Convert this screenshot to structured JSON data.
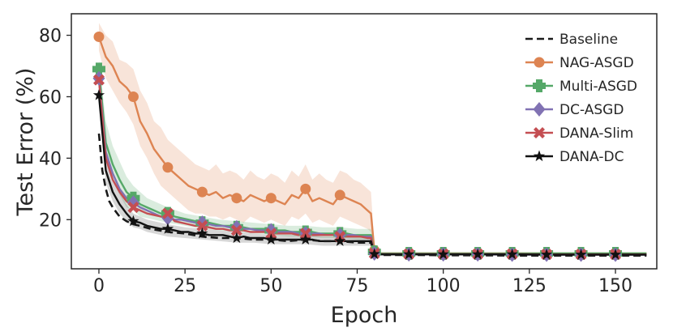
{
  "chart_data": {
    "type": "line",
    "title": "",
    "xlabel": "Epoch",
    "ylabel": "Test Error (%)",
    "xlim": [
      -8,
      162
    ],
    "ylim": [
      4,
      87
    ],
    "x_ticks": [
      0,
      25,
      50,
      75,
      100,
      125,
      150
    ],
    "y_ticks": [
      20,
      40,
      60,
      80
    ],
    "grid": false,
    "legend_position": "top-right",
    "series": [
      {
        "name": "Baseline",
        "color": "#1a1a1a",
        "dash": "dashed",
        "marker": "none",
        "x": [
          0,
          1,
          2,
          3,
          4,
          5,
          6,
          8,
          10,
          12,
          15,
          20,
          25,
          30,
          35,
          40,
          45,
          50,
          55,
          60,
          65,
          70,
          75,
          79,
          80,
          81,
          90,
          100,
          110,
          120,
          130,
          140,
          150,
          159
        ],
        "y": [
          48,
          36,
          30,
          26,
          24,
          22.5,
          21,
          19.5,
          18.5,
          18,
          17,
          16,
          15.5,
          14.5,
          14,
          14,
          13.5,
          13.5,
          13,
          13.5,
          13,
          13,
          12.5,
          12.5,
          9,
          8.5,
          8.5,
          8.4,
          8.4,
          8.3,
          8.3,
          8.3,
          8.3,
          8.3
        ]
      },
      {
        "name": "NAG-ASGD",
        "color": "#dd8452",
        "dash": "solid",
        "marker": "circle",
        "x": [
          0,
          2,
          4,
          6,
          8,
          10,
          12,
          14,
          16,
          18,
          20,
          22,
          24,
          26,
          28,
          30,
          32,
          34,
          36,
          38,
          40,
          42,
          44,
          46,
          48,
          50,
          52,
          54,
          56,
          58,
          60,
          62,
          64,
          66,
          68,
          70,
          72,
          74,
          76,
          78,
          79,
          80,
          81,
          90,
          100,
          110,
          120,
          130,
          140,
          150,
          159
        ],
        "y": [
          79.5,
          73,
          70,
          65,
          63,
          60,
          52,
          48,
          43,
          40,
          37,
          35,
          33,
          31,
          30,
          29,
          28,
          29,
          27,
          28,
          27,
          26,
          28,
          27,
          26,
          27,
          26,
          25,
          28,
          27,
          30,
          26,
          27,
          26,
          25,
          28,
          27,
          26,
          25,
          23,
          22,
          10,
          9,
          9,
          9,
          9,
          9,
          9,
          9,
          9,
          9
        ],
        "marker_x": [
          0,
          10,
          20,
          30,
          40,
          50,
          60,
          70,
          80,
          90,
          100,
          110,
          120,
          130,
          140,
          150
        ]
      },
      {
        "name": "Multi-ASGD",
        "color": "#55a868",
        "dash": "solid",
        "marker": "plus",
        "x": [
          0,
          2,
          4,
          6,
          8,
          10,
          12,
          14,
          16,
          18,
          20,
          22,
          24,
          26,
          28,
          30,
          32,
          34,
          36,
          38,
          40,
          42,
          44,
          46,
          48,
          50,
          52,
          54,
          56,
          58,
          60,
          62,
          64,
          66,
          68,
          70,
          72,
          74,
          76,
          78,
          79,
          80,
          81,
          90,
          100,
          110,
          120,
          130,
          140,
          150,
          159
        ],
        "y": [
          69,
          45,
          38,
          33,
          29,
          27,
          25,
          24,
          23,
          22,
          22,
          21,
          20.5,
          20,
          19.5,
          19,
          19,
          18.5,
          18,
          18,
          17.5,
          17.5,
          17,
          17,
          17,
          16.5,
          16.5,
          16.5,
          16,
          16,
          16,
          16,
          15.5,
          15.5,
          15.5,
          15.5,
          15.5,
          15,
          15,
          15,
          15,
          9.5,
          9,
          9,
          9,
          9,
          9,
          9,
          9,
          9,
          9
        ],
        "marker_x": [
          0,
          10,
          20,
          30,
          40,
          50,
          60,
          70,
          80,
          90,
          100,
          110,
          120,
          130,
          140,
          150
        ]
      },
      {
        "name": "DC-ASGD",
        "color": "#8172b3",
        "dash": "solid",
        "marker": "diamond",
        "x": [
          0,
          2,
          4,
          6,
          8,
          10,
          12,
          14,
          16,
          18,
          20,
          22,
          24,
          26,
          28,
          30,
          32,
          34,
          36,
          38,
          40,
          42,
          44,
          46,
          48,
          50,
          52,
          54,
          56,
          58,
          60,
          62,
          64,
          66,
          68,
          70,
          72,
          74,
          76,
          78,
          79,
          80,
          81,
          90,
          100,
          110,
          120,
          130,
          140,
          150,
          159
        ],
        "y": [
          66,
          42,
          35,
          30,
          27,
          25.5,
          24,
          23,
          22,
          21,
          20.5,
          20,
          20,
          19.5,
          19,
          19,
          18.5,
          18,
          18,
          17.5,
          17.5,
          17,
          17,
          16.5,
          16.5,
          16.5,
          16,
          16,
          16,
          15.5,
          15.5,
          15.5,
          15.5,
          15,
          15,
          15,
          15,
          15,
          14.5,
          14.5,
          14.5,
          9,
          8.7,
          8.7,
          8.7,
          8.7,
          8.6,
          8.6,
          8.6,
          8.6,
          8.6
        ],
        "marker_x": [
          0,
          10,
          20,
          30,
          40,
          50,
          60,
          70,
          80,
          90,
          100,
          110,
          120,
          130,
          140,
          150
        ]
      },
      {
        "name": "DANA-Slim",
        "color": "#c44e52",
        "dash": "solid",
        "marker": "x",
        "x": [
          0,
          2,
          4,
          6,
          8,
          10,
          12,
          14,
          16,
          18,
          20,
          22,
          24,
          26,
          28,
          30,
          32,
          34,
          36,
          38,
          40,
          42,
          44,
          46,
          48,
          50,
          52,
          54,
          56,
          58,
          60,
          62,
          64,
          66,
          68,
          70,
          72,
          74,
          76,
          78,
          79,
          80,
          81,
          90,
          100,
          110,
          120,
          130,
          140,
          150,
          159
        ],
        "y": [
          65.5,
          40,
          33,
          29,
          26,
          24,
          23,
          22,
          21.5,
          21,
          22,
          19.5,
          19,
          18.5,
          18,
          18,
          17.5,
          17,
          17,
          16.5,
          16.5,
          16.5,
          16,
          16,
          16,
          15.5,
          15.5,
          15.5,
          15.5,
          15,
          15.5,
          15,
          15,
          15,
          15,
          14.5,
          14.5,
          14.5,
          14.5,
          14,
          14,
          9,
          8.8,
          8.8,
          8.8,
          8.8,
          8.8,
          8.7,
          8.7,
          8.7,
          8.7
        ],
        "marker_x": [
          0,
          10,
          20,
          30,
          40,
          50,
          60,
          70,
          80,
          90,
          100,
          110,
          120,
          130,
          140,
          150
        ]
      },
      {
        "name": "DANA-DC",
        "color": "#111111",
        "dash": "solid",
        "marker": "star",
        "x": [
          0,
          2,
          4,
          6,
          8,
          10,
          12,
          14,
          16,
          18,
          20,
          22,
          24,
          26,
          28,
          30,
          32,
          34,
          36,
          38,
          40,
          42,
          44,
          46,
          48,
          50,
          52,
          54,
          56,
          58,
          60,
          62,
          64,
          66,
          68,
          70,
          72,
          74,
          76,
          78,
          79,
          80,
          81,
          90,
          100,
          110,
          120,
          130,
          140,
          150,
          159
        ],
        "y": [
          60.5,
          36,
          29,
          25,
          22,
          19.5,
          19,
          18,
          17.5,
          17,
          17,
          16.5,
          16,
          16,
          15.5,
          15.5,
          15,
          15,
          15,
          14.5,
          14,
          14.5,
          14,
          14,
          14,
          13.5,
          13.5,
          13.5,
          13.5,
          13.5,
          13.5,
          13.5,
          13,
          13,
          13,
          13,
          13,
          13,
          13,
          13,
          13,
          8.8,
          8.7,
          8.7,
          8.7,
          8.7,
          8.7,
          8.6,
          8.6,
          8.6,
          8.6
        ],
        "marker_x": [
          0,
          10,
          20,
          30,
          40,
          50,
          60,
          70,
          80,
          90,
          100,
          110,
          120,
          130,
          140,
          150
        ]
      }
    ],
    "bands": [
      {
        "name": "NAG-ASGD",
        "color": "#dd8452",
        "x": [
          0,
          2,
          4,
          6,
          8,
          10,
          12,
          14,
          16,
          18,
          20,
          22,
          24,
          26,
          28,
          30,
          32,
          34,
          36,
          38,
          40,
          42,
          44,
          46,
          48,
          50,
          52,
          54,
          56,
          58,
          60,
          62,
          64,
          66,
          68,
          70,
          72,
          74,
          76,
          78,
          79,
          80,
          81
        ],
        "upper": [
          84,
          80,
          78,
          72,
          71,
          69,
          62,
          58,
          52,
          50,
          46,
          44,
          42,
          40,
          38,
          37,
          36,
          38,
          35,
          36,
          35,
          33,
          36,
          34,
          33,
          35,
          34,
          32,
          36,
          34,
          38,
          33,
          35,
          33,
          32,
          36,
          35,
          33,
          32,
          30,
          29,
          12,
          10
        ],
        "lower": [
          75,
          66,
          62,
          58,
          55,
          51,
          44,
          40,
          35,
          31,
          29,
          27,
          25,
          23,
          22,
          22,
          21,
          21,
          20,
          21,
          20,
          19,
          21,
          20,
          19,
          20,
          19,
          18,
          21,
          20,
          22,
          19,
          20,
          19,
          18,
          21,
          20,
          19,
          18,
          17,
          16,
          9,
          8.5
        ]
      },
      {
        "name": "Multi-ASGD",
        "color": "#55a868",
        "x": [
          0,
          2,
          4,
          6,
          8,
          10,
          12,
          14,
          16,
          18,
          20,
          25,
          30,
          35,
          40,
          45,
          50,
          55,
          60,
          65,
          70,
          75,
          79,
          80,
          81
        ],
        "upper": [
          72,
          52,
          44,
          39,
          34,
          31,
          29,
          27,
          26,
          25,
          24,
          22,
          21,
          20,
          19.5,
          19,
          18.5,
          18,
          18,
          17.5,
          17.5,
          17,
          17,
          10,
          9.2
        ],
        "lower": [
          66,
          40,
          33,
          28,
          24,
          23,
          21,
          20.5,
          20,
          19.5,
          19,
          18,
          17,
          16.5,
          16,
          15.5,
          15,
          14.5,
          14.5,
          14,
          14,
          13.5,
          13.5,
          8.8,
          8.6
        ]
      },
      {
        "name": "DANA-DC",
        "color": "#4a4a4a",
        "x": [
          0,
          2,
          4,
          6,
          8,
          10,
          12,
          14,
          16,
          18,
          20,
          25,
          30,
          35,
          40,
          45,
          50,
          55,
          60,
          65,
          70,
          75,
          79,
          80,
          81
        ],
        "upper": [
          63,
          40,
          33,
          29,
          25,
          22,
          21,
          20,
          19.5,
          19,
          18.5,
          17.5,
          17,
          16.5,
          16,
          15.5,
          15,
          15,
          15,
          14.5,
          14.5,
          14.5,
          14.5,
          9.2,
          9
        ],
        "lower": [
          58,
          32,
          26,
          22,
          19.5,
          17.5,
          17,
          16,
          15.5,
          15,
          14.5,
          14,
          13.5,
          13,
          12.5,
          12.5,
          12,
          12,
          12,
          11.5,
          11.5,
          11.5,
          11.5,
          8.5,
          8.4
        ]
      }
    ]
  }
}
